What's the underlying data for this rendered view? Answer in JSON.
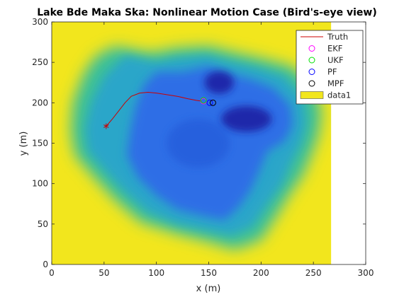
{
  "chart_data": {
    "type": "heatmap",
    "title": "Lake Bde Maka Ska: Nonlinear Motion Case (Bird's-eye view)",
    "xlabel": "x (m)",
    "ylabel": "y (m)",
    "xlim": [
      0,
      300
    ],
    "ylim": [
      0,
      300
    ],
    "xticks": [
      "0",
      "50",
      "100",
      "150",
      "200",
      "250",
      "300"
    ],
    "yticks": [
      "0",
      "50",
      "100",
      "150",
      "200",
      "250",
      "300"
    ],
    "grid": false,
    "legend_position": "top-right",
    "surface_extent": {
      "x": [
        0,
        267
      ],
      "y": [
        0,
        300
      ]
    },
    "colors": {
      "deep": "#1a1fa0",
      "water": "#2f6ee6",
      "shallow": "#2aa6c9",
      "shore": "#3bbf9a",
      "land": "#f2e61d",
      "truth": "#cc0000",
      "ekf": "#ff00ff",
      "ukf": "#00e000",
      "pf": "#0000ff",
      "mpf": "#000000"
    },
    "truth_path": {
      "x": [
        52,
        58,
        64,
        70,
        76,
        84,
        92,
        100,
        110,
        120,
        130,
        138,
        143
      ],
      "y": [
        171,
        180,
        190,
        200,
        208,
        212,
        213,
        212,
        210,
        208,
        205,
        203,
        202
      ]
    },
    "start_marker": {
      "x": 52,
      "y": 171,
      "symbol": "*"
    },
    "estimates": [
      {
        "name": "EKF",
        "x": 145,
        "y": 202
      },
      {
        "name": "UKF",
        "x": 145,
        "y": 203
      },
      {
        "name": "PF",
        "x": 151,
        "y": 200
      },
      {
        "name": "MPF",
        "x": 154,
        "y": 200
      }
    ],
    "legend": [
      {
        "label": "Truth",
        "symbol": "line",
        "color": "#cc0000"
      },
      {
        "label": "EKF",
        "symbol": "circle",
        "color": "#ff00ff"
      },
      {
        "label": "UKF",
        "symbol": "circle",
        "color": "#00e000"
      },
      {
        "label": "PF",
        "symbol": "circle",
        "color": "#0000ff"
      },
      {
        "label": "MPF",
        "symbol": "circle",
        "color": "#000000"
      },
      {
        "label": "data1",
        "symbol": "patch",
        "color": "#f2e61d"
      }
    ]
  }
}
